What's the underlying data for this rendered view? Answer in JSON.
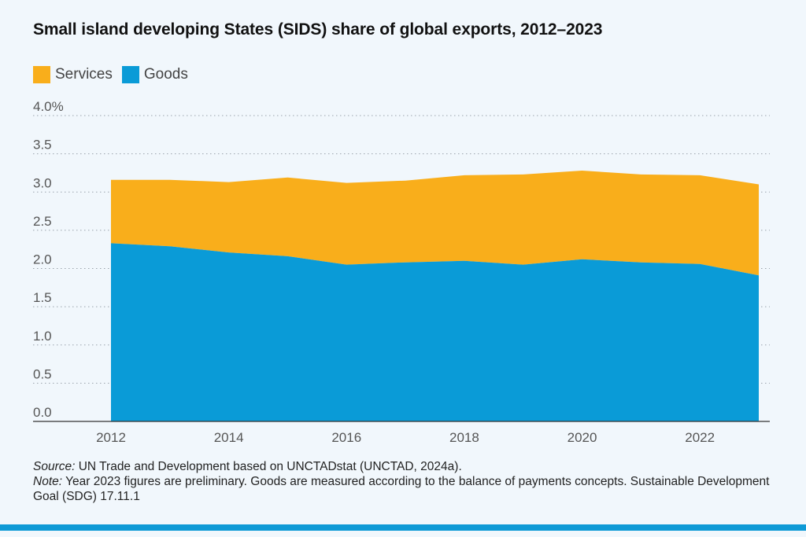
{
  "title": "Small island developing States (SIDS) share of global exports, 2012–2023",
  "legend": [
    {
      "label": "Services",
      "color": "#f9ae1b"
    },
    {
      "label": "Goods",
      "color": "#0a9bd7"
    }
  ],
  "chart_data": {
    "type": "area",
    "stacked": true,
    "x": [
      2012,
      2013,
      2014,
      2015,
      2016,
      2017,
      2018,
      2019,
      2020,
      2021,
      2022,
      2023
    ],
    "series": [
      {
        "name": "Goods",
        "color": "#0a9bd7",
        "values": [
          2.33,
          2.29,
          2.21,
          2.16,
          2.05,
          2.08,
          2.1,
          2.05,
          2.12,
          2.08,
          2.06,
          1.91
        ]
      },
      {
        "name": "Services",
        "color": "#f9ae1b",
        "values": [
          0.83,
          0.87,
          0.92,
          1.03,
          1.07,
          1.07,
          1.12,
          1.18,
          1.16,
          1.15,
          1.16,
          1.19
        ]
      }
    ],
    "ylim": [
      0,
      4.0
    ],
    "y_ticks": [
      "0.0",
      "0.5",
      "1.0",
      "1.5",
      "2.0",
      "2.5",
      "3.0",
      "3.5",
      "4.0%"
    ],
    "x_ticks": [
      "2012",
      "2014",
      "2016",
      "2018",
      "2020",
      "2022"
    ],
    "grid": "horizontal dotted",
    "legend_position": "top-left"
  },
  "notes": {
    "source_label": "Source:",
    "source_text": " UN Trade and Development based on UNCTADstat (UNCTAD, 2024a).",
    "note_label": "Note:",
    "note_text": " Year 2023 figures are preliminary. Goods are measured according to the balance of payments concepts. Sustainable Development Goal (SDG) 17.11.1"
  },
  "colors": {
    "bar": "#0f9ad6",
    "grid": "#9aa3ab",
    "background": "#f1f7fc"
  }
}
